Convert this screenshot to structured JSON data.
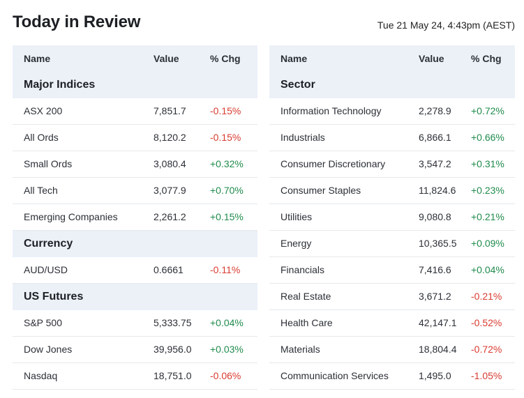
{
  "header": {
    "title": "Today in Review",
    "timestamp": "Tue 21 May 24, 4:43pm (AEST)"
  },
  "columns": {
    "name": "Name",
    "value": "Value",
    "chg": "% Chg"
  },
  "left": {
    "sections": [
      {
        "title": "Major Indices",
        "rows": [
          {
            "name": "ASX 200",
            "value": "7,851.7",
            "chg": "-0.15%"
          },
          {
            "name": "All Ords",
            "value": "8,120.2",
            "chg": "-0.15%"
          },
          {
            "name": "Small Ords",
            "value": "3,080.4",
            "chg": "+0.32%"
          },
          {
            "name": "All Tech",
            "value": "3,077.9",
            "chg": "+0.70%"
          },
          {
            "name": "Emerging Companies",
            "value": "2,261.2",
            "chg": "+0.15%"
          }
        ]
      },
      {
        "title": "Currency",
        "rows": [
          {
            "name": "AUD/USD",
            "value": "0.6661",
            "chg": "-0.11%"
          }
        ]
      },
      {
        "title": "US Futures",
        "rows": [
          {
            "name": "S&P 500",
            "value": "5,333.75",
            "chg": "+0.04%"
          },
          {
            "name": "Dow Jones",
            "value": "39,956.0",
            "chg": "+0.03%"
          },
          {
            "name": "Nasdaq",
            "value": "18,751.0",
            "chg": "-0.06%"
          }
        ]
      }
    ]
  },
  "right": {
    "sections": [
      {
        "title": "Sector",
        "rows": [
          {
            "name": "Information Technology",
            "value": "2,278.9",
            "chg": "+0.72%"
          },
          {
            "name": "Industrials",
            "value": "6,866.1",
            "chg": "+0.66%"
          },
          {
            "name": "Consumer Discretionary",
            "value": "3,547.2",
            "chg": "+0.31%"
          },
          {
            "name": "Consumer Staples",
            "value": "11,824.6",
            "chg": "+0.23%"
          },
          {
            "name": "Utilities",
            "value": "9,080.8",
            "chg": "+0.21%"
          },
          {
            "name": "Energy",
            "value": "10,365.5",
            "chg": "+0.09%"
          },
          {
            "name": "Financials",
            "value": "7,416.6",
            "chg": "+0.04%"
          },
          {
            "name": "Real Estate",
            "value": "3,671.2",
            "chg": "-0.21%"
          },
          {
            "name": "Health Care",
            "value": "42,147.1",
            "chg": "-0.52%"
          },
          {
            "name": "Materials",
            "value": "18,804.4",
            "chg": "-0.72%"
          },
          {
            "name": "Communication Services",
            "value": "1,495.0",
            "chg": "-1.05%"
          }
        ]
      }
    ]
  },
  "colors": {
    "negative": "#d93b30",
    "positive": "#1f8b4c",
    "header_bg": "#ecf1f8"
  }
}
